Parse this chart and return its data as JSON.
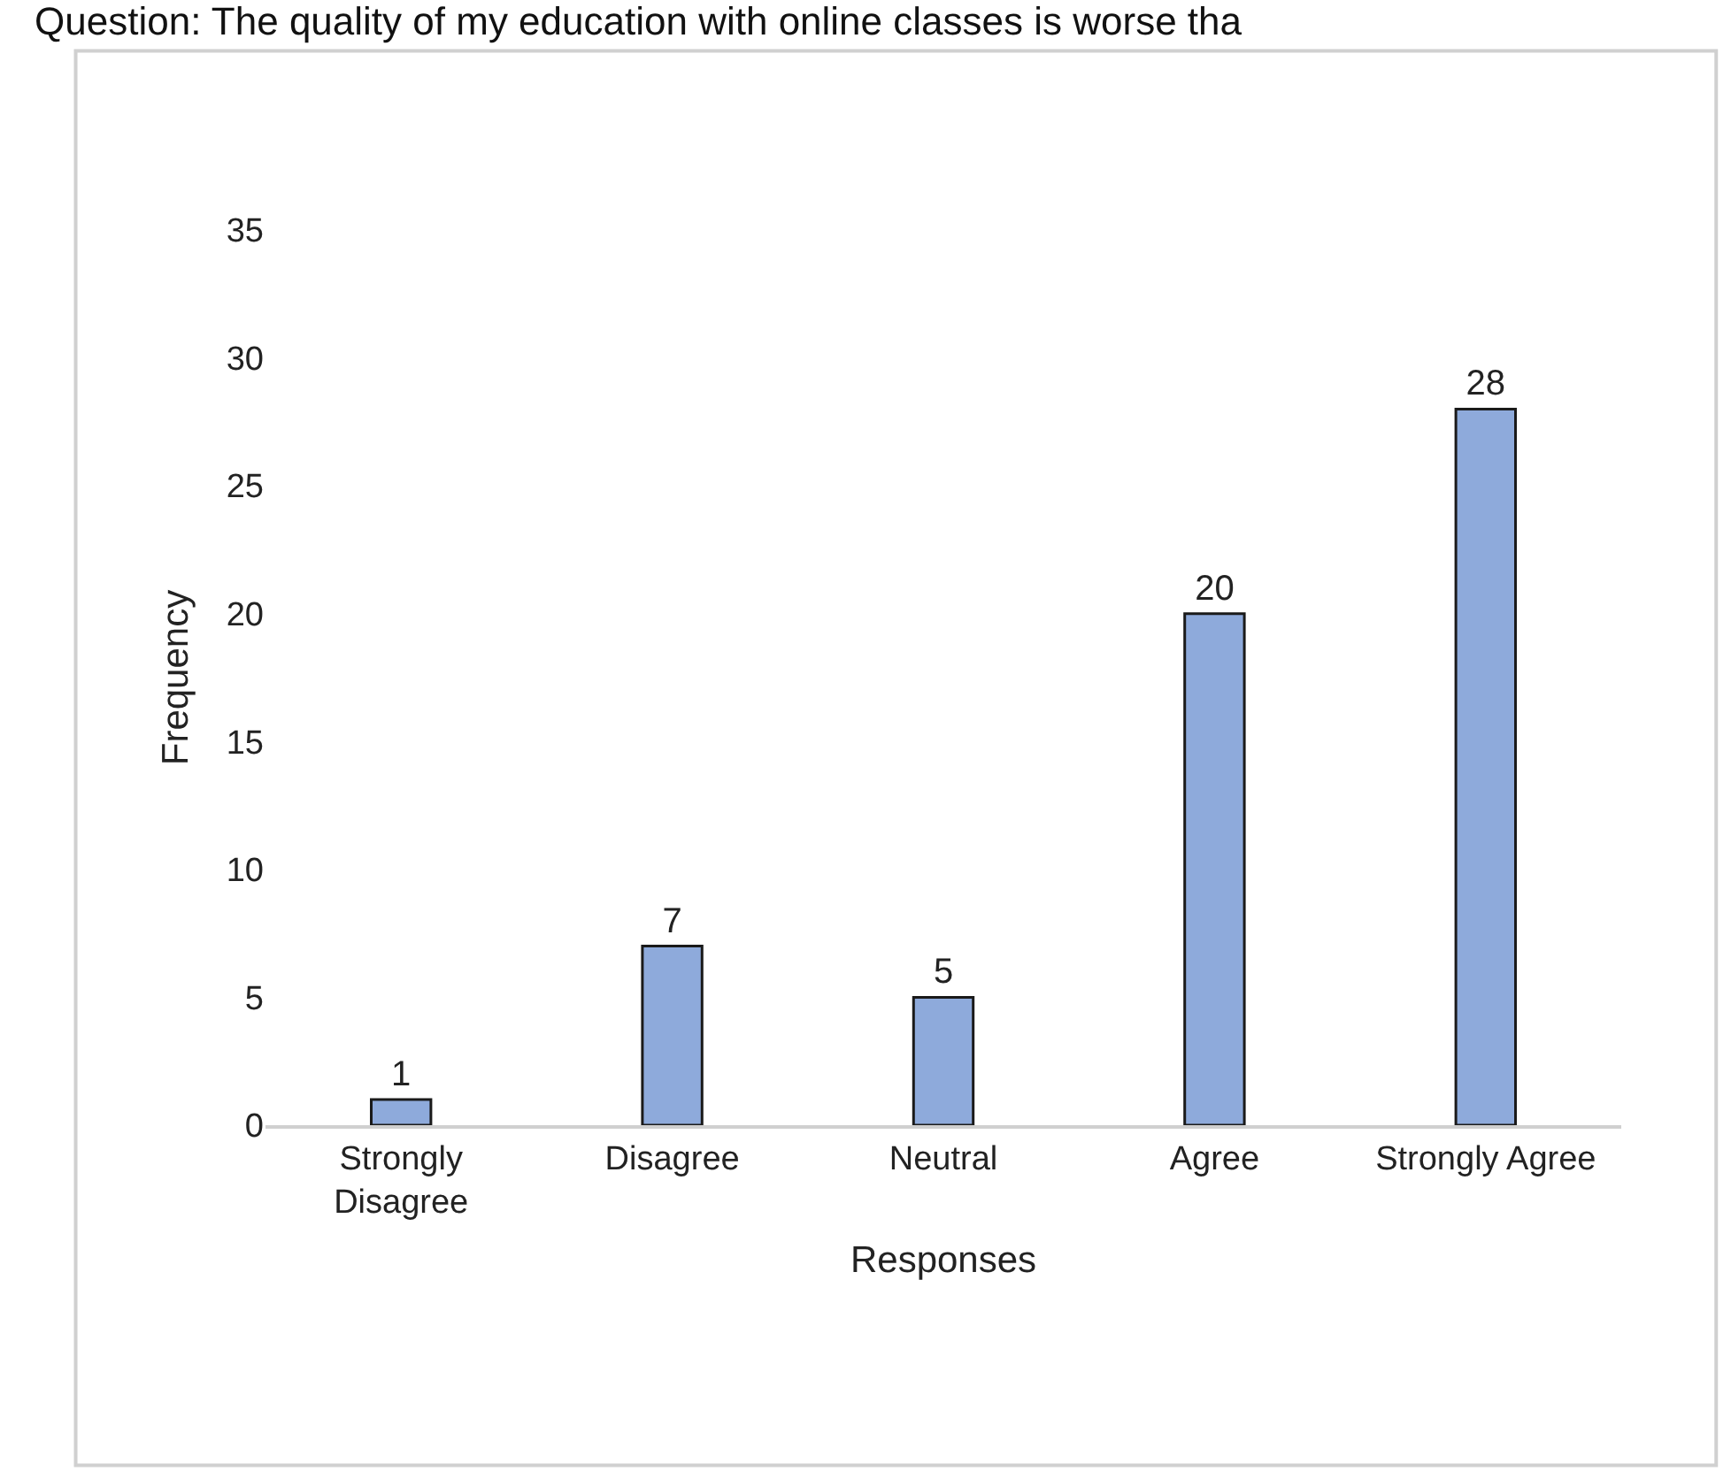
{
  "chart_data": {
    "type": "bar",
    "title": "Question: The quality of my education with online classes is worse tha",
    "xlabel": "Responses",
    "ylabel": "Frequency",
    "categories": [
      "Strongly Disagree",
      "Disagree",
      "Neutral",
      "Agree",
      "Strongly Agree"
    ],
    "values": [
      1,
      7,
      5,
      20,
      28
    ],
    "color": "#8eaadb",
    "ylim": [
      0,
      35
    ],
    "yticks": [
      0,
      5,
      10,
      15,
      20,
      25,
      30,
      35
    ],
    "data_labels": true
  }
}
